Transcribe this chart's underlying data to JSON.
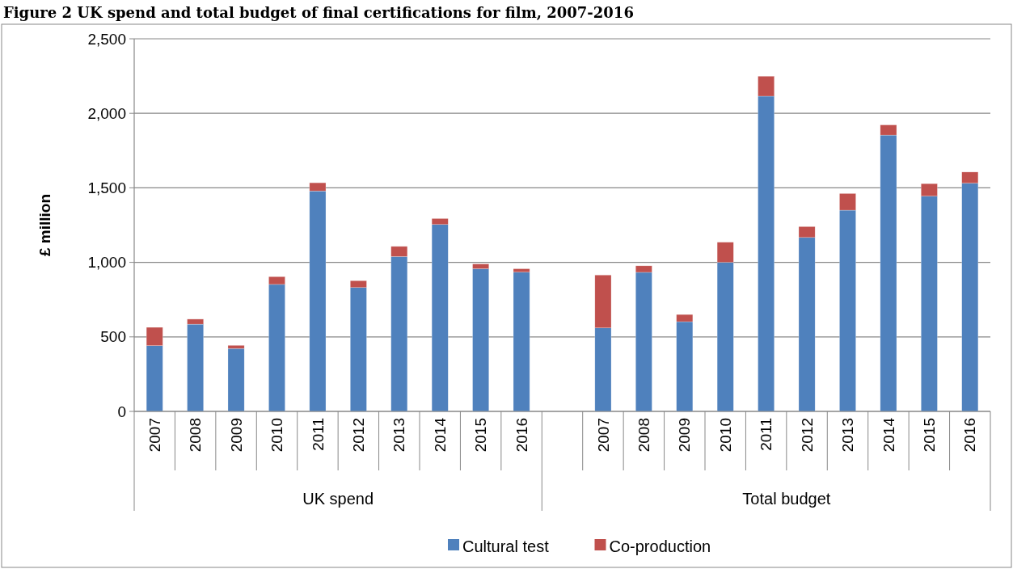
{
  "chart_data": {
    "type": "bar",
    "title": "Figure 2 UK spend and total budget of final certifications for film, 2007-2016",
    "ylabel": "£ million",
    "categories": [
      "2007",
      "2008",
      "2009",
      "2010",
      "2011",
      "2012",
      "2013",
      "2014",
      "2015",
      "2016",
      null,
      "2007",
      "2008",
      "2009",
      "2010",
      "2011",
      "2012",
      "2013",
      "2014",
      "2015",
      "2016"
    ],
    "series": [
      {
        "name": "Cultural test",
        "color": "#4f81bd",
        "values": [
          441,
          585,
          422,
          852,
          1479,
          831,
          1039,
          1254,
          957,
          934,
          null,
          560,
          933,
          602,
          1000,
          2115,
          1167,
          1350,
          1854,
          1444,
          1531
        ]
      },
      {
        "name": "Co-production",
        "color": "#c0504d",
        "values": [
          123,
          34,
          21,
          52,
          55,
          46,
          68,
          40,
          32,
          23,
          null,
          355,
          44,
          48,
          135,
          134,
          73,
          112,
          68,
          84,
          75
        ]
      }
    ],
    "stacked": true,
    "ylim": [
      0,
      2500
    ],
    "yticks": [
      0,
      {
        "value": 500,
        "label": "500"
      },
      {
        "value": 1000,
        "label": "1,000"
      },
      {
        "value": 1500,
        "label": "1,500"
      },
      {
        "value": 2000,
        "label": "2,000"
      },
      {
        "value": 2500,
        "label": "2,500"
      }
    ],
    "grid": "y",
    "legend": "bottom",
    "annotations": [
      "UK spend",
      "Total budget"
    ]
  }
}
